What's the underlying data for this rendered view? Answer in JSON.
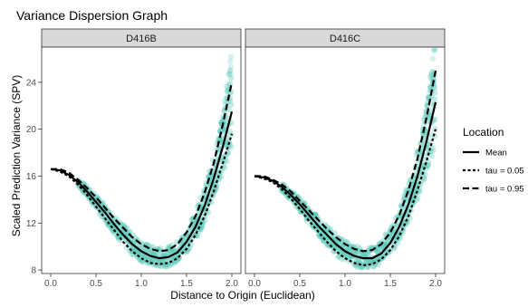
{
  "chart_data": {
    "type": "scatter",
    "title": "Variance Dispersion Graph",
    "xlabel": "Distance to Origin (Euclidean)",
    "ylabel": "Scaled Prediction Variance (SPV)",
    "xlim": [
      -0.1,
      2.1
    ],
    "ylim": [
      7.7,
      27.0
    ],
    "x_ticks": [
      0.0,
      0.5,
      1.0,
      1.5,
      2.0
    ],
    "x_tick_labels": [
      "0.0",
      "0.5",
      "1.0",
      "1.5",
      "2.0"
    ],
    "y_ticks": [
      8,
      12,
      16,
      20,
      24
    ],
    "y_tick_labels": [
      "8",
      "12",
      "16",
      "20",
      "24"
    ],
    "grid": false,
    "legend": {
      "title": "Location",
      "placement": "right",
      "entries": [
        {
          "label": "Mean",
          "dash": "solid"
        },
        {
          "label": "tau = 0.05",
          "dash": "dotted"
        },
        {
          "label": "tau = 0.95",
          "dash": "dashed"
        }
      ]
    },
    "colors": {
      "points": "#5cc9bb",
      "lines": "#000000",
      "strip": "#d9d9d9"
    },
    "panels": [
      {
        "label": "D416B",
        "x": [
          0.0,
          0.1,
          0.2,
          0.3,
          0.4,
          0.5,
          0.6,
          0.7,
          0.8,
          0.9,
          1.0,
          1.1,
          1.2,
          1.3,
          1.4,
          1.5,
          1.6,
          1.7,
          1.8,
          1.9,
          2.0
        ],
        "series": [
          {
            "name": "Mean",
            "values": [
              16.6,
              16.5,
              16.1,
              15.5,
              14.7,
              13.8,
              12.9,
              11.9,
              11.0,
              10.2,
              9.6,
              9.2,
              9.0,
              9.1,
              9.5,
              10.4,
              11.7,
              13.5,
              15.8,
              18.5,
              21.5
            ]
          },
          {
            "name": "tau = 0.05",
            "values": [
              16.6,
              16.4,
              16.0,
              15.3,
              14.4,
              13.4,
              12.4,
              11.4,
              10.4,
              9.6,
              9.0,
              8.6,
              8.5,
              8.6,
              9.0,
              9.8,
              11.0,
              12.6,
              14.7,
              17.1,
              19.6
            ]
          },
          {
            "name": "tau = 0.95",
            "values": [
              16.6,
              16.6,
              16.3,
              15.7,
              15.0,
              14.2,
              13.3,
              12.4,
              11.6,
              10.8,
              10.2,
              9.8,
              9.6,
              9.7,
              10.2,
              11.2,
              12.6,
              14.6,
              17.1,
              20.4,
              24.0
            ]
          }
        ]
      },
      {
        "label": "D416C",
        "x": [
          0.0,
          0.1,
          0.2,
          0.3,
          0.4,
          0.5,
          0.6,
          0.7,
          0.8,
          0.9,
          1.0,
          1.1,
          1.2,
          1.3,
          1.4,
          1.5,
          1.6,
          1.7,
          1.8,
          1.9,
          2.0
        ],
        "series": [
          {
            "name": "Mean",
            "values": [
              16.0,
              15.9,
              15.6,
              15.1,
              14.4,
              13.6,
              12.7,
              11.8,
              11.0,
              10.2,
              9.6,
              9.2,
              9.0,
              9.0,
              9.4,
              10.3,
              11.7,
              13.6,
              16.0,
              19.0,
              22.3
            ]
          },
          {
            "name": "tau = 0.05",
            "values": [
              16.0,
              15.8,
              15.5,
              14.9,
              14.1,
              13.2,
              12.2,
              11.3,
              10.4,
              9.6,
              9.0,
              8.6,
              8.4,
              8.5,
              8.9,
              9.7,
              10.9,
              12.6,
              14.8,
              17.3,
              20.0
            ]
          },
          {
            "name": "tau = 0.95",
            "values": [
              16.0,
              16.0,
              15.7,
              15.3,
              14.7,
              13.9,
              13.1,
              12.3,
              11.5,
              10.8,
              10.2,
              9.8,
              9.6,
              9.7,
              10.2,
              11.2,
              12.7,
              14.8,
              17.5,
              21.0,
              25.0
            ]
          }
        ]
      }
    ]
  }
}
